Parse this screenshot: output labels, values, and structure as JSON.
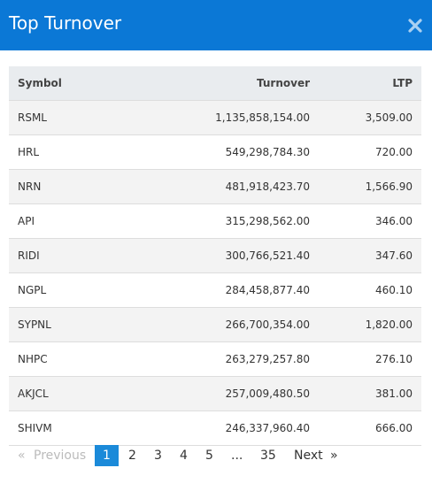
{
  "header": {
    "title": "Top Turnover"
  },
  "table": {
    "columns": [
      "Symbol",
      "Turnover",
      "LTP"
    ],
    "rows": [
      [
        "RSML",
        "1,135,858,154.00",
        "3,509.00"
      ],
      [
        "HRL",
        "549,298,784.30",
        "720.00"
      ],
      [
        "NRN",
        "481,918,423.70",
        "1,566.90"
      ],
      [
        "API",
        "315,298,562.00",
        "346.00"
      ],
      [
        "RIDI",
        "300,766,521.40",
        "347.60"
      ],
      [
        "NGPL",
        "284,458,877.40",
        "460.10"
      ],
      [
        "SYPNL",
        "266,700,354.00",
        "1,820.00"
      ],
      [
        "NHPC",
        "263,279,257.80",
        "276.10"
      ],
      [
        "AKJCL",
        "257,009,480.50",
        "381.00"
      ],
      [
        "SHIVM",
        "246,337,960.40",
        "666.00"
      ]
    ]
  },
  "pagination": {
    "first": "«",
    "previous": "Previous",
    "pages": [
      "1",
      "2",
      "3",
      "4",
      "5",
      "...",
      "35"
    ],
    "current": "1",
    "next": "Next",
    "last": "»"
  }
}
